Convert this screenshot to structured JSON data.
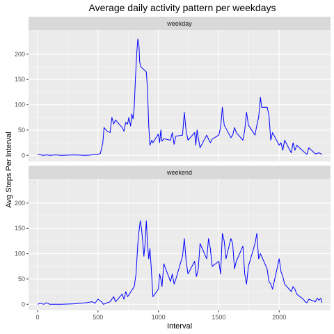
{
  "chart_data": {
    "type": "line",
    "title": "Average daily activity pattern per weekdays",
    "xlabel": "Interval",
    "ylabel": "Avg Steps Per Interval",
    "xlim": [
      -75,
      2425
    ],
    "ylim": [
      -12,
      248
    ],
    "x_ticks": [
      0,
      500,
      1000,
      1500,
      2000
    ],
    "y_ticks": [
      0,
      50,
      100,
      150,
      200
    ],
    "line_color": "#0000ff",
    "panel_background": "#ebebeb",
    "strip_background": "#d9d9d9",
    "grid": true,
    "legend": "none",
    "panels": [
      {
        "strip": "weekday",
        "points": [
          [
            0,
            2
          ],
          [
            25,
            1
          ],
          [
            50,
            0
          ],
          [
            75,
            1
          ],
          [
            100,
            0
          ],
          [
            150,
            1
          ],
          [
            200,
            0
          ],
          [
            300,
            1
          ],
          [
            400,
            0
          ],
          [
            450,
            1
          ],
          [
            500,
            2
          ],
          [
            520,
            4
          ],
          [
            540,
            25
          ],
          [
            550,
            55
          ],
          [
            575,
            48
          ],
          [
            600,
            45
          ],
          [
            615,
            75
          ],
          [
            630,
            62
          ],
          [
            645,
            70
          ],
          [
            700,
            55
          ],
          [
            715,
            48
          ],
          [
            730,
            65
          ],
          [
            745,
            62
          ],
          [
            755,
            75
          ],
          [
            770,
            58
          ],
          [
            780,
            82
          ],
          [
            790,
            72
          ],
          [
            800,
            95
          ],
          [
            810,
            150
          ],
          [
            820,
            200
          ],
          [
            830,
            230
          ],
          [
            840,
            215
          ],
          [
            845,
            185
          ],
          [
            855,
            175
          ],
          [
            900,
            165
          ],
          [
            910,
            130
          ],
          [
            920,
            60
          ],
          [
            930,
            20
          ],
          [
            945,
            30
          ],
          [
            955,
            25
          ],
          [
            1000,
            42
          ],
          [
            1010,
            25
          ],
          [
            1020,
            50
          ],
          [
            1030,
            28
          ],
          [
            1045,
            33
          ],
          [
            1100,
            30
          ],
          [
            1115,
            45
          ],
          [
            1130,
            22
          ],
          [
            1145,
            38
          ],
          [
            1200,
            40
          ],
          [
            1215,
            85
          ],
          [
            1230,
            48
          ],
          [
            1245,
            30
          ],
          [
            1300,
            45
          ],
          [
            1310,
            20
          ],
          [
            1320,
            50
          ],
          [
            1330,
            35
          ],
          [
            1345,
            15
          ],
          [
            1400,
            40
          ],
          [
            1415,
            32
          ],
          [
            1430,
            25
          ],
          [
            1445,
            32
          ],
          [
            1500,
            40
          ],
          [
            1515,
            55
          ],
          [
            1530,
            95
          ],
          [
            1545,
            60
          ],
          [
            1600,
            35
          ],
          [
            1615,
            40
          ],
          [
            1630,
            55
          ],
          [
            1645,
            45
          ],
          [
            1700,
            30
          ],
          [
            1715,
            50
          ],
          [
            1730,
            85
          ],
          [
            1745,
            60
          ],
          [
            1800,
            40
          ],
          [
            1815,
            60
          ],
          [
            1830,
            75
          ],
          [
            1845,
            115
          ],
          [
            1855,
            95
          ],
          [
            1900,
            95
          ],
          [
            1915,
            80
          ],
          [
            1930,
            30
          ],
          [
            1945,
            45
          ],
          [
            2000,
            20
          ],
          [
            2015,
            25
          ],
          [
            2030,
            10
          ],
          [
            2045,
            30
          ],
          [
            2100,
            5
          ],
          [
            2115,
            25
          ],
          [
            2130,
            10
          ],
          [
            2145,
            20
          ],
          [
            2200,
            8
          ],
          [
            2215,
            5
          ],
          [
            2230,
            2
          ],
          [
            2245,
            15
          ],
          [
            2300,
            3
          ],
          [
            2330,
            5
          ],
          [
            2355,
            2
          ]
        ]
      },
      {
        "strip": "weekend",
        "points": [
          [
            0,
            0
          ],
          [
            25,
            2
          ],
          [
            50,
            0
          ],
          [
            75,
            3
          ],
          [
            100,
            0
          ],
          [
            200,
            0
          ],
          [
            300,
            1
          ],
          [
            400,
            3
          ],
          [
            450,
            5
          ],
          [
            475,
            2
          ],
          [
            500,
            10
          ],
          [
            530,
            5
          ],
          [
            545,
            0
          ],
          [
            600,
            5
          ],
          [
            630,
            15
          ],
          [
            645,
            5
          ],
          [
            700,
            20
          ],
          [
            715,
            10
          ],
          [
            730,
            25
          ],
          [
            745,
            15
          ],
          [
            800,
            35
          ],
          [
            815,
            60
          ],
          [
            830,
            120
          ],
          [
            840,
            145
          ],
          [
            850,
            165
          ],
          [
            860,
            150
          ],
          [
            870,
            125
          ],
          [
            880,
            95
          ],
          [
            890,
            120
          ],
          [
            900,
            165
          ],
          [
            910,
            120
          ],
          [
            920,
            90
          ],
          [
            930,
            110
          ],
          [
            940,
            75
          ],
          [
            955,
            15
          ],
          [
            1000,
            30
          ],
          [
            1010,
            60
          ],
          [
            1020,
            50
          ],
          [
            1030,
            35
          ],
          [
            1045,
            80
          ],
          [
            1100,
            45
          ],
          [
            1115,
            60
          ],
          [
            1130,
            40
          ],
          [
            1145,
            50
          ],
          [
            1200,
            95
          ],
          [
            1215,
            130
          ],
          [
            1230,
            85
          ],
          [
            1245,
            60
          ],
          [
            1300,
            85
          ],
          [
            1315,
            55
          ],
          [
            1330,
            70
          ],
          [
            1345,
            120
          ],
          [
            1400,
            90
          ],
          [
            1415,
            130
          ],
          [
            1430,
            110
          ],
          [
            1445,
            75
          ],
          [
            1500,
            85
          ],
          [
            1515,
            60
          ],
          [
            1530,
            140
          ],
          [
            1545,
            125
          ],
          [
            1560,
            90
          ],
          [
            1600,
            130
          ],
          [
            1615,
            120
          ],
          [
            1630,
            70
          ],
          [
            1645,
            85
          ],
          [
            1700,
            115
          ],
          [
            1715,
            60
          ],
          [
            1730,
            40
          ],
          [
            1745,
            75
          ],
          [
            1800,
            120
          ],
          [
            1815,
            140
          ],
          [
            1830,
            90
          ],
          [
            1845,
            100
          ],
          [
            1900,
            70
          ],
          [
            1915,
            45
          ],
          [
            1930,
            40
          ],
          [
            1945,
            30
          ],
          [
            2000,
            90
          ],
          [
            2015,
            65
          ],
          [
            2030,
            55
          ],
          [
            2045,
            40
          ],
          [
            2100,
            25
          ],
          [
            2115,
            35
          ],
          [
            2130,
            30
          ],
          [
            2145,
            20
          ],
          [
            2200,
            10
          ],
          [
            2215,
            5
          ],
          [
            2230,
            3
          ],
          [
            2245,
            10
          ],
          [
            2300,
            5
          ],
          [
            2315,
            12
          ],
          [
            2330,
            8
          ],
          [
            2345,
            12
          ],
          [
            2355,
            3
          ]
        ]
      }
    ]
  }
}
